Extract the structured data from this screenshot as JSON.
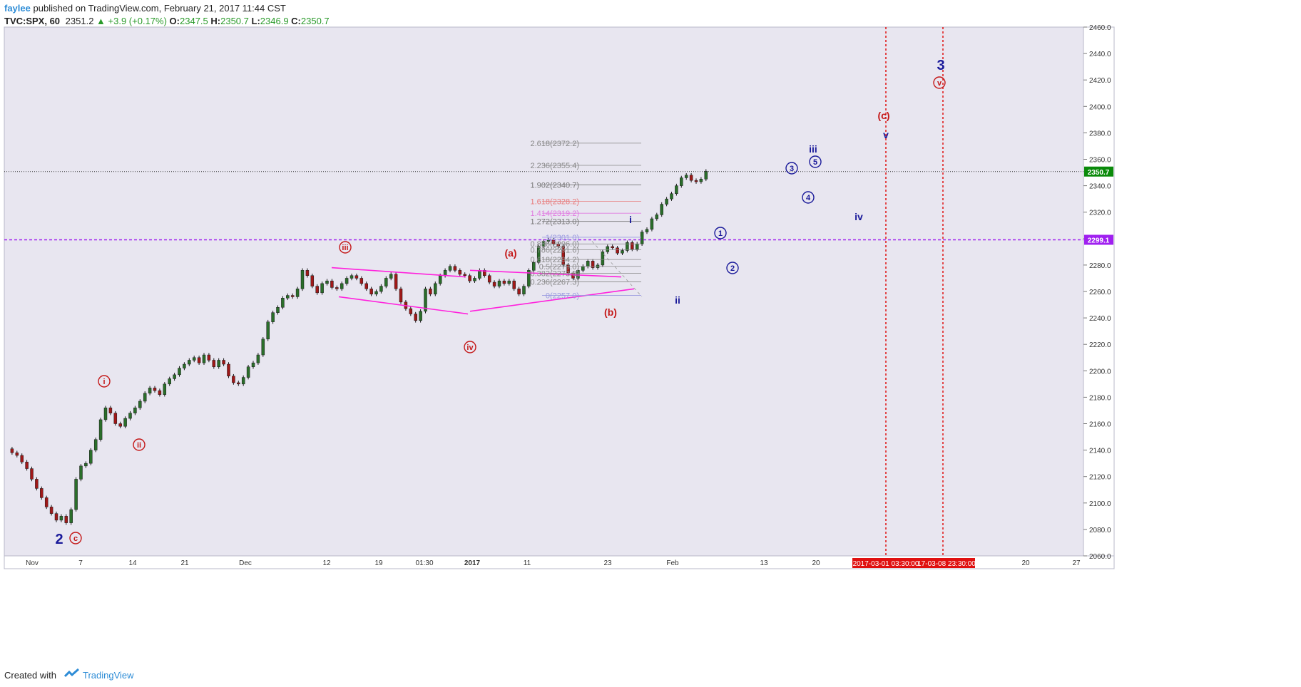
{
  "header": {
    "author": "faylee",
    "published_text": "published on TradingView.com, February 21, 2017 11:44 CST",
    "symbol": "TVC:SPX, 60",
    "last": "2351.2",
    "change": "▲ +3.9 (+0.17%)",
    "open_label": "O:",
    "open": "2347.5",
    "high_label": "H:",
    "high": "2350.7",
    "low_label": "L:",
    "low": "2346.9",
    "close_label": "C:",
    "close": "2350.7"
  },
  "footer": {
    "created_with": "Created with",
    "brand": "TradingView"
  },
  "colors": {
    "background": "#e8e6f0",
    "up_candle": "#2a6e2a",
    "down_candle": "#a01818",
    "wave_red": "#c41818",
    "wave_blue": "#1a1a9a",
    "channel": "#ff22dd",
    "level_line": "#a020f0",
    "price_tag": "#0a8a0a",
    "date_marker": "#e01010"
  },
  "chart_data": {
    "type": "candlestick",
    "y_axis": {
      "min": 2060,
      "max": 2460,
      "ticks": [
        "2060.0",
        "2080.0",
        "2100.0",
        "2120.0",
        "2140.0",
        "2160.0",
        "2180.0",
        "2200.0",
        "2220.0",
        "2240.0",
        "2260.0",
        "2280.0",
        "2300.0",
        "2320.0",
        "2340.0",
        "2360.0",
        "2380.0",
        "2400.0",
        "2420.0",
        "2440.0",
        "2460.0"
      ]
    },
    "x_axis": {
      "ticks": [
        "Nov",
        "7",
        "14",
        "21",
        "Dec",
        "12",
        "19",
        "01:30",
        "2017",
        "11",
        "23",
        "Feb",
        "13",
        "20",
        "20",
        "27"
      ],
      "bold_tick": "2017"
    },
    "price_path": [
      [
        0,
        2141
      ],
      [
        2,
        2138
      ],
      [
        4,
        2136
      ],
      [
        6,
        2131
      ],
      [
        8,
        2126
      ],
      [
        10,
        2118
      ],
      [
        12,
        2111
      ],
      [
        14,
        2104
      ],
      [
        16,
        2097
      ],
      [
        18,
        2092
      ],
      [
        20,
        2087
      ],
      [
        22,
        2090
      ],
      [
        24,
        2085
      ],
      [
        26,
        2095
      ],
      [
        28,
        2118
      ],
      [
        30,
        2128
      ],
      [
        32,
        2130
      ],
      [
        34,
        2140
      ],
      [
        36,
        2148
      ],
      [
        38,
        2163
      ],
      [
        40,
        2172
      ],
      [
        42,
        2168
      ],
      [
        44,
        2160
      ],
      [
        46,
        2158
      ],
      [
        48,
        2164
      ],
      [
        50,
        2168
      ],
      [
        52,
        2172
      ],
      [
        54,
        2177
      ],
      [
        56,
        2183
      ],
      [
        58,
        2187
      ],
      [
        60,
        2185
      ],
      [
        62,
        2182
      ],
      [
        64,
        2190
      ],
      [
        66,
        2194
      ],
      [
        68,
        2197
      ],
      [
        70,
        2202
      ],
      [
        72,
        2205
      ],
      [
        74,
        2208
      ],
      [
        76,
        2210
      ],
      [
        78,
        2206
      ],
      [
        80,
        2212
      ],
      [
        82,
        2208
      ],
      [
        84,
        2203
      ],
      [
        86,
        2208
      ],
      [
        88,
        2205
      ],
      [
        90,
        2196
      ],
      [
        92,
        2191
      ],
      [
        94,
        2190
      ],
      [
        96,
        2195
      ],
      [
        98,
        2203
      ],
      [
        100,
        2206
      ],
      [
        102,
        2212
      ],
      [
        104,
        2224
      ],
      [
        106,
        2237
      ],
      [
        108,
        2244
      ],
      [
        110,
        2248
      ],
      [
        112,
        2255
      ],
      [
        114,
        2257
      ],
      [
        116,
        2256
      ],
      [
        118,
        2262
      ],
      [
        120,
        2276
      ],
      [
        122,
        2272
      ],
      [
        124,
        2264
      ],
      [
        126,
        2259
      ],
      [
        128,
        2266
      ],
      [
        130,
        2268
      ],
      [
        132,
        2263
      ],
      [
        134,
        2262
      ],
      [
        136,
        2266
      ],
      [
        138,
        2270
      ],
      [
        140,
        2272
      ],
      [
        142,
        2270
      ],
      [
        144,
        2266
      ],
      [
        146,
        2262
      ],
      [
        148,
        2258
      ],
      [
        150,
        2260
      ],
      [
        152,
        2264
      ],
      [
        154,
        2270
      ],
      [
        156,
        2273
      ],
      [
        158,
        2262
      ],
      [
        160,
        2252
      ],
      [
        162,
        2247
      ],
      [
        164,
        2243
      ],
      [
        166,
        2238
      ],
      [
        168,
        2245
      ],
      [
        170,
        2262
      ],
      [
        172,
        2258
      ],
      [
        174,
        2266
      ],
      [
        176,
        2272
      ],
      [
        178,
        2276
      ],
      [
        180,
        2279
      ],
      [
        182,
        2276
      ],
      [
        184,
        2273
      ],
      [
        186,
        2272
      ],
      [
        188,
        2268
      ],
      [
        190,
        2270
      ],
      [
        192,
        2276
      ],
      [
        194,
        2272
      ],
      [
        196,
        2267
      ],
      [
        198,
        2264
      ],
      [
        200,
        2268
      ],
      [
        202,
        2266
      ],
      [
        204,
        2268
      ],
      [
        206,
        2262
      ],
      [
        208,
        2258
      ],
      [
        210,
        2264
      ],
      [
        212,
        2276
      ],
      [
        214,
        2282
      ],
      [
        216,
        2294
      ],
      [
        218,
        2298
      ],
      [
        220,
        2299
      ],
      [
        222,
        2296
      ],
      [
        224,
        2294
      ],
      [
        226,
        2280
      ],
      [
        228,
        2274
      ],
      [
        230,
        2270
      ],
      [
        232,
        2276
      ],
      [
        234,
        2279
      ],
      [
        236,
        2283
      ],
      [
        238,
        2278
      ],
      [
        240,
        2280
      ],
      [
        242,
        2290
      ],
      [
        244,
        2294
      ],
      [
        246,
        2293
      ],
      [
        248,
        2289
      ],
      [
        250,
        2291
      ],
      [
        252,
        2297
      ],
      [
        254,
        2292
      ],
      [
        256,
        2296
      ],
      [
        258,
        2305
      ],
      [
        260,
        2307
      ],
      [
        262,
        2315
      ],
      [
        264,
        2318
      ],
      [
        266,
        2326
      ],
      [
        268,
        2330
      ],
      [
        270,
        2334
      ],
      [
        272,
        2340
      ],
      [
        274,
        2346
      ],
      [
        276,
        2348
      ],
      [
        278,
        2344
      ],
      [
        280,
        2343
      ],
      [
        282,
        2345
      ],
      [
        284,
        2351
      ]
    ],
    "wave_labels_red": [
      {
        "text": "i",
        "circled": true
      },
      {
        "text": "ii",
        "circled": true
      },
      {
        "text": "iii",
        "circled": true
      },
      {
        "text": "iv",
        "circled": true
      },
      {
        "text": "c",
        "circled": true
      },
      {
        "text": "v",
        "circled": true
      },
      {
        "text": "(a)",
        "circled": false
      },
      {
        "text": "(b)",
        "circled": false
      },
      {
        "text": "(c)",
        "circled": false
      }
    ],
    "wave_labels_blue": [
      {
        "text": "2",
        "circled": false
      },
      {
        "text": "3",
        "circled": false
      },
      {
        "text": "i",
        "circled": false
      },
      {
        "text": "ii",
        "circled": false
      },
      {
        "text": "iii",
        "circled": false
      },
      {
        "text": "iv",
        "circled": false
      },
      {
        "text": "v",
        "circled": false
      },
      {
        "text": "1",
        "circled": true
      },
      {
        "text": "2",
        "circled": true
      },
      {
        "text": "3",
        "circled": true
      },
      {
        "text": "4",
        "circled": true
      },
      {
        "text": "5",
        "circled": true
      }
    ],
    "fib_levels": [
      {
        "label": "2.618(2372.2)",
        "price": 2372.2,
        "color": "#888888"
      },
      {
        "label": "2.236(2355.4)",
        "price": 2355.4,
        "color": "#888888"
      },
      {
        "label": "1.902(2340.7)",
        "price": 2340.7,
        "color": "#777777"
      },
      {
        "label": "1.618(2328.2)",
        "price": 2328.2,
        "color": "#e87a7a"
      },
      {
        "label": "1.414(2319.2)",
        "price": 2319.2,
        "color": "#e07ae0"
      },
      {
        "label": "1.272(2313.0)",
        "price": 2313.0,
        "color": "#777777"
      },
      {
        "label": "1(2301.0)",
        "price": 2301.0,
        "color": "#9a9ae0"
      },
      {
        "label": "0.886(2296.0)",
        "price": 2296.0,
        "color": "#888888"
      },
      {
        "label": "0.786(2291.6)",
        "price": 2291.6,
        "color": "#888888"
      },
      {
        "label": "0.618(2284.2)",
        "price": 2284.2,
        "color": "#888888"
      },
      {
        "label": "0.5(2279.0)",
        "price": 2279.0,
        "color": "#888888"
      },
      {
        "label": "0.382(2273.8)",
        "price": 2273.8,
        "color": "#888888"
      },
      {
        "label": "0.236(2267.3)",
        "price": 2267.3,
        "color": "#888888"
      },
      {
        "label": "0(2257.0)",
        "price": 2257.0,
        "color": "#9a9ae0"
      }
    ],
    "price_tags": [
      {
        "label": "2350.7",
        "price": 2350.7
      },
      {
        "label": "2299.1",
        "price": 2299.1
      }
    ],
    "date_markers": [
      "2017-03-01 03:30:00",
      "17-03-08 23:30:00"
    ],
    "horizontal_line_price": 2299.1,
    "dotted_price_line": 2350.7
  }
}
